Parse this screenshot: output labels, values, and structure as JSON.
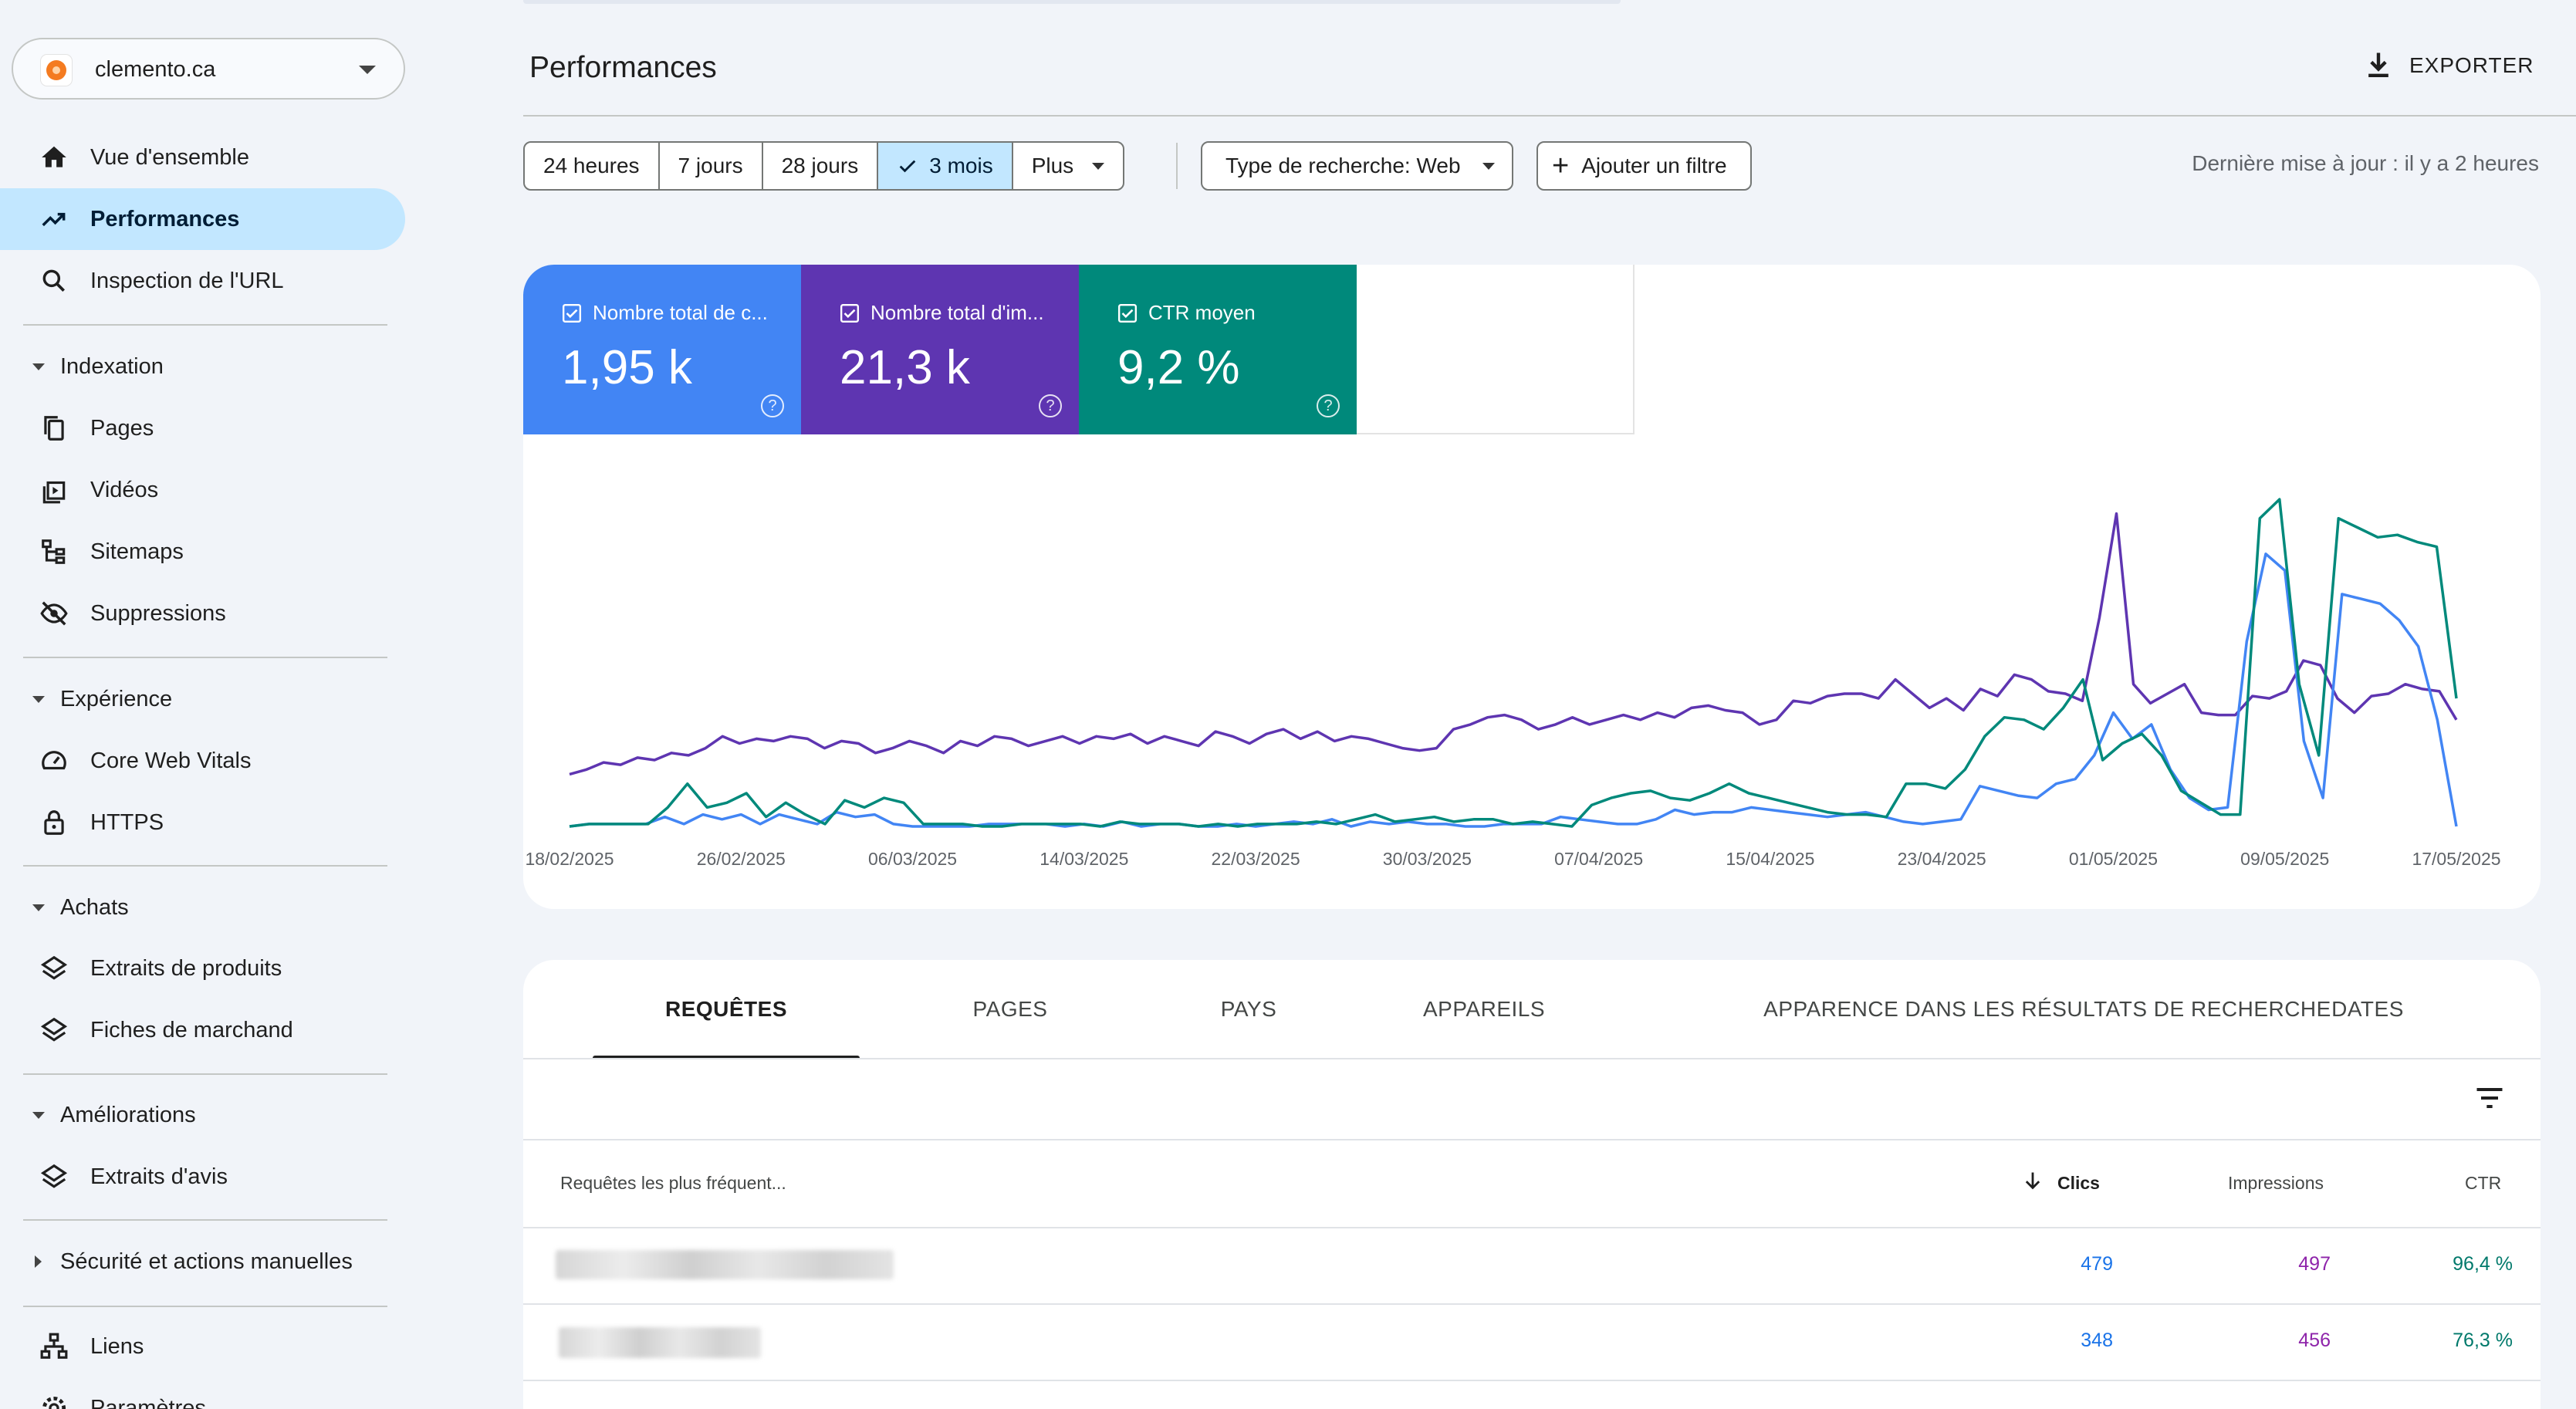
{
  "colors": {
    "clicks": "#4285f4",
    "impressions": "#5e35b1",
    "ctr": "#00897b",
    "selected": "#c2e7ff"
  },
  "property": {
    "name": "clemento.ca"
  },
  "sidebar": {
    "top": [
      {
        "label": "Vue d'ensemble",
        "icon": "home-icon"
      },
      {
        "label": "Performances",
        "icon": "trending-up-icon"
      },
      {
        "label": "Inspection de l'URL",
        "icon": "search-icon"
      }
    ],
    "sections": [
      {
        "label": "Indexation",
        "items": [
          {
            "label": "Pages",
            "icon": "pages-icon"
          },
          {
            "label": "Vidéos",
            "icon": "video-icon"
          },
          {
            "label": "Sitemaps",
            "icon": "sitemap-icon"
          },
          {
            "label": "Suppressions",
            "icon": "eye-off-icon"
          }
        ]
      },
      {
        "label": "Expérience",
        "items": [
          {
            "label": "Core Web Vitals",
            "icon": "speedometer-icon"
          },
          {
            "label": "HTTPS",
            "icon": "lock-icon"
          }
        ]
      },
      {
        "label": "Achats",
        "items": [
          {
            "label": "Extraits de produits",
            "icon": "layers-icon"
          },
          {
            "label": "Fiches de marchand",
            "icon": "layers-icon"
          }
        ]
      },
      {
        "label": "Améliorations",
        "items": [
          {
            "label": "Extraits d'avis",
            "icon": "layers-icon"
          }
        ]
      },
      {
        "label": "Sécurité et actions manuelles",
        "items": []
      }
    ],
    "bottom": [
      {
        "label": "Liens",
        "icon": "links-icon"
      },
      {
        "label": "Paramètres",
        "icon": "settings-icon"
      }
    ]
  },
  "header": {
    "title": "Performances",
    "export_label": "EXPORTER"
  },
  "filters": {
    "ranges": [
      "24 heures",
      "7 jours",
      "28 jours",
      "3 mois",
      "Plus"
    ],
    "selected_range": "3 mois",
    "search_type": "Type de recherche: Web",
    "add_filter": "Ajouter un filtre",
    "last_update": "Dernière mise à jour : il y a 2 heures"
  },
  "metrics": [
    {
      "label": "Nombre total de c...",
      "value": "1,95 k",
      "color": "#4285f4"
    },
    {
      "label": "Nombre total d'im...",
      "value": "21,3 k",
      "color": "#5e35b1"
    },
    {
      "label": "CTR moyen",
      "value": "9,2 %",
      "color": "#00897b"
    }
  ],
  "chart_data": {
    "type": "line",
    "x_ticks": [
      "18/02/2025",
      "26/02/2025",
      "06/03/2025",
      "14/03/2025",
      "22/03/2025",
      "30/03/2025",
      "07/04/2025",
      "15/04/2025",
      "23/04/2025",
      "01/05/2025",
      "09/05/2025",
      "17/05/2025"
    ],
    "x_start": "18/02/2025",
    "x_end": "17/05/2025",
    "grid": false,
    "legend": "metric cards above chart",
    "series": [
      {
        "name": "Nombre total d'im...",
        "color": "#5e35b1",
        "values": [
          22,
          24,
          27,
          26,
          29,
          28,
          31,
          30,
          33,
          38,
          35,
          37,
          36,
          38,
          37,
          33,
          36,
          35,
          31,
          33,
          36,
          34,
          31,
          36,
          34,
          38,
          37,
          34,
          36,
          38,
          35,
          38,
          37,
          39,
          35,
          38,
          36,
          34,
          40,
          38,
          35,
          39,
          41,
          37,
          40,
          36,
          38,
          37,
          35,
          33,
          32,
          33,
          41,
          43,
          46,
          47,
          45,
          41,
          43,
          46,
          43,
          45,
          47,
          45,
          48,
          46,
          50,
          51,
          49,
          48,
          43,
          45,
          53,
          52,
          55,
          56,
          56,
          54,
          62,
          56,
          50,
          54,
          49,
          58,
          55,
          64,
          62,
          57,
          56,
          53,
          88,
          132,
          60,
          52,
          56,
          60,
          48,
          47,
          47,
          55,
          54,
          57,
          70,
          68,
          54,
          48,
          55,
          56,
          60,
          58,
          57,
          45
        ]
      },
      {
        "name": "Nombre total de c...",
        "color": "#4285f4",
        "values": [
          0,
          1,
          1,
          1,
          1,
          4,
          1,
          5,
          3,
          5,
          1,
          5,
          3,
          1,
          6,
          4,
          5,
          1,
          0,
          0,
          0,
          0,
          1,
          1,
          1,
          1,
          0,
          1,
          0,
          2,
          0,
          1,
          1,
          0,
          0,
          1,
          0,
          1,
          2,
          1,
          3,
          0,
          2,
          1,
          2,
          1,
          1,
          0,
          0,
          1,
          1,
          1,
          4,
          3,
          2,
          1,
          1,
          3,
          7,
          5,
          6,
          6,
          8,
          7,
          6,
          5,
          4,
          5,
          6,
          4,
          2,
          1,
          2,
          3,
          17,
          15,
          13,
          12,
          18,
          20,
          30,
          48,
          37,
          43,
          24,
          12,
          7,
          8,
          78,
          115,
          108,
          36,
          12,
          98,
          96,
          94,
          87,
          76,
          45,
          0
        ]
      },
      {
        "name": "CTR moyen",
        "color": "#00897b",
        "values": [
          0,
          1,
          1,
          1,
          1,
          8,
          18,
          8,
          10,
          14,
          4,
          10,
          5,
          1,
          11,
          8,
          12,
          10,
          1,
          1,
          1,
          0,
          0,
          1,
          1,
          1,
          1,
          0,
          2,
          1,
          1,
          1,
          0,
          1,
          0,
          1,
          1,
          1,
          2,
          1,
          3,
          5,
          2,
          3,
          4,
          2,
          3,
          3,
          1,
          2,
          1,
          0,
          9,
          12,
          14,
          15,
          12,
          11,
          14,
          18,
          14,
          12,
          10,
          8,
          6,
          5,
          5,
          4,
          18,
          18,
          16,
          24,
          38,
          46,
          45,
          41,
          50,
          62,
          28,
          35,
          39,
          30,
          15,
          10,
          5,
          5,
          130,
          138,
          60,
          30,
          130,
          126,
          122,
          123,
          120,
          118,
          54
        ]
      }
    ]
  },
  "table": {
    "tabs": [
      "REQUÊTES",
      "PAGES",
      "PAYS",
      "APPAREILS",
      "APPARENCE DANS LES RÉSULTATS DE RECHERCHE",
      "DATES"
    ],
    "active_tab": "REQUÊTES",
    "columns": {
      "query": "Requêtes les plus fréquent...",
      "clicks": "Clics",
      "impressions": "Impressions",
      "ctr": "CTR"
    },
    "rows": [
      {
        "clicks": "479",
        "impressions": "497",
        "ctr": "96,4 %"
      },
      {
        "clicks": "348",
        "impressions": "456",
        "ctr": "76,3 %"
      }
    ]
  }
}
